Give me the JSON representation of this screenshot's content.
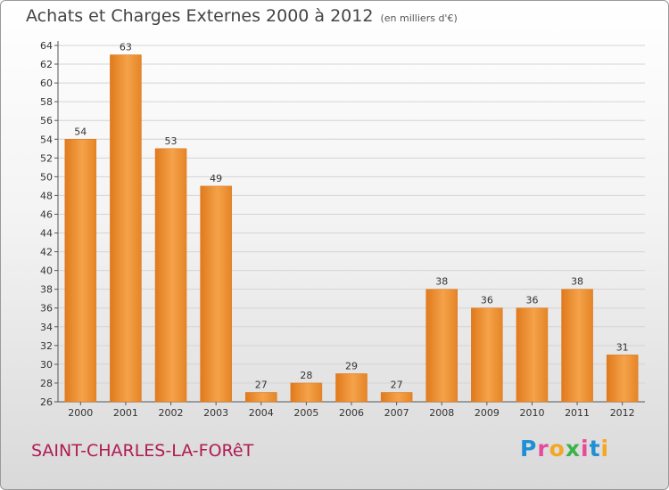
{
  "header": {
    "title": "Achats et Charges Externes 2000 à 2012",
    "unit": "(en milliers d'€)"
  },
  "footer": {
    "place": "SAINT-CHARLES-LA-FORêT",
    "logo": "Proxiti",
    "logo_colors": [
      "#1f8fd6",
      "#e84a9a",
      "#f5a623",
      "#3bb34a",
      "#e84a9a",
      "#1f8fd6",
      "#f5a623"
    ]
  },
  "chart_data": {
    "type": "bar",
    "title": "Achats et Charges Externes 2000 à 2012",
    "subtitle": "(en milliers d'€)",
    "categories": [
      "2000",
      "2001",
      "2002",
      "2003",
      "2004",
      "2005",
      "2006",
      "2007",
      "2008",
      "2009",
      "2010",
      "2011",
      "2012"
    ],
    "values": [
      54,
      63,
      53,
      49,
      27,
      28,
      29,
      27,
      38,
      36,
      36,
      38,
      31
    ],
    "ylim": [
      26,
      64
    ],
    "yticks": [
      26,
      28,
      30,
      32,
      34,
      36,
      38,
      40,
      42,
      44,
      46,
      48,
      50,
      52,
      54,
      56,
      58,
      60,
      62,
      64
    ],
    "grid": true,
    "bar_color": "#f0922e",
    "xlabel": "",
    "ylabel": ""
  }
}
